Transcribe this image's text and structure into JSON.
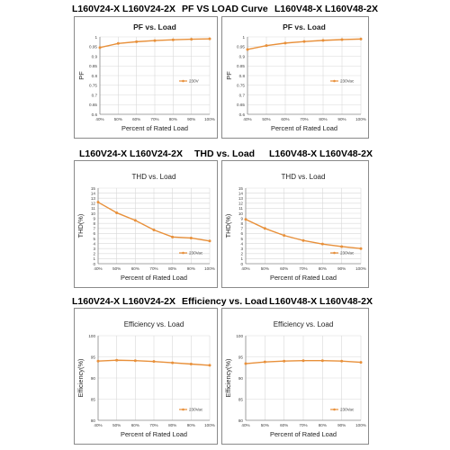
{
  "sections": [
    {
      "left": "L160V24-X  L160V24-2X",
      "center": "PF VS LOAD Curve",
      "right": "L160V48-X  L160V48-2X"
    },
    {
      "left": "L160V24-X  L160V24-2X",
      "center": "THD vs. Load",
      "right": "L160V48-X  L160V48-2X"
    },
    {
      "left": "L160V24-X  L160V24-2X",
      "center": "Efficiency vs. Load",
      "right": "L160V48-X  L160V48-2X"
    }
  ],
  "colors": {
    "series": "#e8903a",
    "grid": "#d9d9d9",
    "axis": "#8c8c8c",
    "text": "#404040"
  },
  "chart_data": [
    {
      "id": "pf-24",
      "type": "line",
      "title": "PF vs. Load",
      "title_bold": true,
      "xlabel": "Percent of Rated Load",
      "ylabel": "PF",
      "categories": [
        "40%",
        "50%",
        "60%",
        "70%",
        "80%",
        "90%",
        "100%"
      ],
      "ylim": [
        0.6,
        1.0
      ],
      "yticks": [
        "0.6",
        "0.65",
        "0.7",
        "0.75",
        "0.8",
        "0.85",
        "0.9",
        "0.95",
        "1"
      ],
      "grid": true,
      "legend": "right-middle",
      "series": [
        {
          "name": "230V",
          "values": [
            0.945,
            0.966,
            0.975,
            0.981,
            0.985,
            0.988,
            0.99
          ]
        }
      ]
    },
    {
      "id": "pf-48",
      "type": "line",
      "title": "PF vs. Load",
      "title_bold": true,
      "xlabel": "Percent of Rated Load",
      "ylabel": "PF",
      "categories": [
        "40%",
        "50%",
        "60%",
        "70%",
        "80%",
        "90%",
        "100%"
      ],
      "ylim": [
        0.6,
        1.0
      ],
      "yticks": [
        "0.6",
        "0.65",
        "0.7",
        "0.75",
        "0.8",
        "0.85",
        "0.9",
        "0.95",
        "1"
      ],
      "grid": true,
      "legend": "right-middle",
      "series": [
        {
          "name": "230Vac",
          "values": [
            0.935,
            0.955,
            0.968,
            0.976,
            0.982,
            0.986,
            0.989
          ]
        }
      ]
    },
    {
      "id": "thd-24",
      "type": "line",
      "title": "THD vs. Load",
      "title_bold": false,
      "xlabel": "Percent of Rated Load",
      "ylabel": "THD(%)",
      "categories": [
        "40%",
        "50%",
        "60%",
        "70%",
        "80%",
        "90%",
        "100%"
      ],
      "ylim": [
        0,
        15
      ],
      "yticks": [
        "0",
        "1",
        "2",
        "3",
        "4",
        "5",
        "6",
        "7",
        "8",
        "9",
        "10",
        "11",
        "12",
        "13",
        "14",
        "15"
      ],
      "grid": true,
      "legend": "right-bottom",
      "series": [
        {
          "name": "230Vac",
          "values": [
            12.2,
            10.1,
            8.6,
            6.7,
            5.3,
            5.1,
            4.5
          ]
        }
      ]
    },
    {
      "id": "thd-48",
      "type": "line",
      "title": "THD vs. Load",
      "title_bold": false,
      "xlabel": "Percent of Rated Load",
      "ylabel": "THD(%)",
      "categories": [
        "40%",
        "50%",
        "60%",
        "70%",
        "80%",
        "90%",
        "100%"
      ],
      "ylim": [
        0,
        15
      ],
      "yticks": [
        "0",
        "1",
        "2",
        "3",
        "4",
        "5",
        "6",
        "7",
        "8",
        "9",
        "10",
        "11",
        "12",
        "13",
        "14",
        "15"
      ],
      "grid": true,
      "legend": "right-bottom",
      "series": [
        {
          "name": "230Vac",
          "values": [
            8.8,
            7.0,
            5.6,
            4.6,
            3.9,
            3.4,
            3.0
          ]
        }
      ]
    },
    {
      "id": "eff-24",
      "type": "line",
      "title": "Efficiency vs. Load",
      "title_bold": false,
      "xlabel": "Percent of Rated Load",
      "ylabel": "Efficiency(%)",
      "categories": [
        "40%",
        "50%",
        "60%",
        "70%",
        "80%",
        "90%",
        "100%"
      ],
      "ylim": [
        80,
        100
      ],
      "yticks": [
        "80",
        "85",
        "90",
        "95",
        "100"
      ],
      "grid": true,
      "legend": "right-bottom",
      "series": [
        {
          "name": "230Vac",
          "values": [
            94.0,
            94.2,
            94.1,
            93.9,
            93.6,
            93.3,
            93.0
          ]
        }
      ]
    },
    {
      "id": "eff-48",
      "type": "line",
      "title": "Efficiency vs. Load",
      "title_bold": false,
      "xlabel": "Percent of Rated Load",
      "ylabel": "Efficiency(%)",
      "categories": [
        "40%",
        "50%",
        "60%",
        "70%",
        "80%",
        "90%",
        "100%"
      ],
      "ylim": [
        80,
        100
      ],
      "yticks": [
        "80",
        "85",
        "90",
        "95",
        "100"
      ],
      "grid": true,
      "legend": "right-bottom",
      "series": [
        {
          "name": "230Vac",
          "values": [
            93.4,
            93.8,
            94.0,
            94.1,
            94.1,
            94.0,
            93.7
          ]
        }
      ]
    }
  ]
}
